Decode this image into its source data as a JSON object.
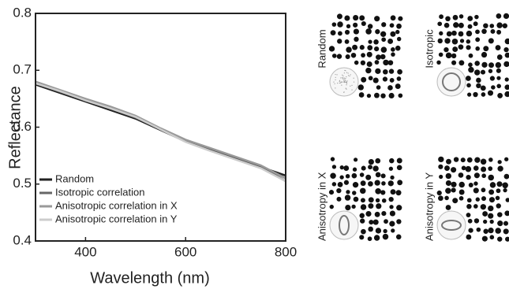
{
  "chart_data": {
    "type": "line",
    "x_label": "Wavelength (nm)",
    "y_label": "Reflectance",
    "x": [
      300,
      350,
      400,
      450,
      500,
      550,
      600,
      650,
      700,
      750,
      800
    ],
    "series": [
      {
        "name": "Random",
        "color": "#222222",
        "values": [
          0.675,
          0.66,
          0.645,
          0.63,
          0.615,
          0.595,
          0.575,
          0.56,
          0.545,
          0.53,
          0.515
        ]
      },
      {
        "name": "Isotropic correlation",
        "color": "#666666",
        "values": [
          0.678,
          0.662,
          0.648,
          0.633,
          0.617,
          0.597,
          0.577,
          0.562,
          0.547,
          0.532,
          0.505
        ]
      },
      {
        "name": "Anisotropic correlation in X",
        "color": "#999999",
        "values": [
          0.68,
          0.665,
          0.65,
          0.636,
          0.62,
          0.598,
          0.578,
          0.563,
          0.548,
          0.533,
          0.51
        ]
      },
      {
        "name": "Anisotropic correlation in Y",
        "color": "#cccccc",
        "values": [
          0.677,
          0.663,
          0.647,
          0.633,
          0.618,
          0.596,
          0.574,
          0.558,
          0.543,
          0.528,
          0.505
        ]
      }
    ],
    "xlim": [
      300,
      800
    ],
    "xticks": [
      400,
      600,
      800
    ],
    "ylim": [
      0.4,
      0.8
    ],
    "yticks": [
      0.4,
      0.5,
      0.6,
      0.7,
      0.8
    ],
    "legend": "lower-left"
  },
  "panels": [
    {
      "label": "Random"
    },
    {
      "label": "Isotropic"
    },
    {
      "label": "Anisotropy in X"
    },
    {
      "label": "Anisotropy in Y"
    }
  ]
}
